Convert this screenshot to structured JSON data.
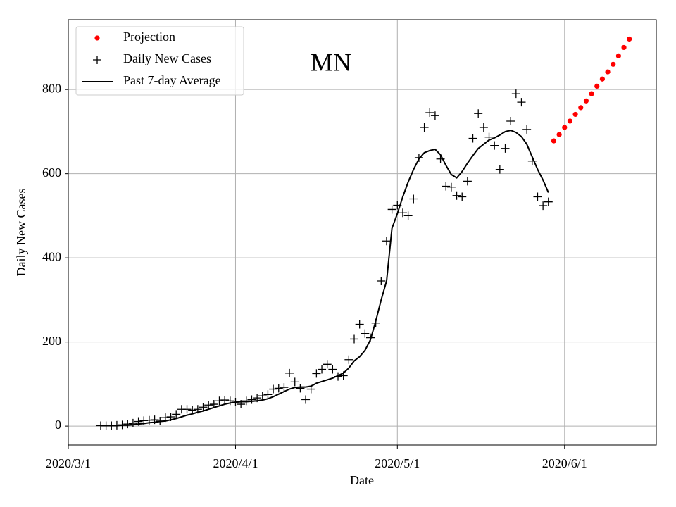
{
  "chart_data": {
    "type": "line",
    "title": "MN",
    "xlabel": "Date",
    "ylabel": "Daily New Cases",
    "xlim": [
      "2020/3/1",
      "2020/6/18"
    ],
    "ylim": [
      -45,
      966
    ],
    "xticks": [
      "2020/3/1",
      "2020/4/1",
      "2020/5/1",
      "2020/6/1"
    ],
    "yticks": [
      0,
      200,
      400,
      600,
      800
    ],
    "grid": true,
    "legend": "upper left",
    "series": [
      {
        "name": "Projection",
        "kind": "dots",
        "color": "#ff0000",
        "x": [
          "2020/5/30",
          "2020/5/31",
          "2020/6/1",
          "2020/6/2",
          "2020/6/3",
          "2020/6/4",
          "2020/6/5",
          "2020/6/6",
          "2020/6/7",
          "2020/6/8",
          "2020/6/9",
          "2020/6/10",
          "2020/6/11",
          "2020/6/12",
          "2020/6/13"
        ],
        "values": [
          678,
          693,
          710,
          725,
          741,
          757,
          773,
          790,
          808,
          825,
          842,
          860,
          880,
          900,
          920
        ]
      },
      {
        "name": "Daily New Cases",
        "kind": "plus",
        "color": "#000000",
        "x": [
          "2020/3/7",
          "2020/3/8",
          "2020/3/9",
          "2020/3/10",
          "2020/3/11",
          "2020/3/12",
          "2020/3/13",
          "2020/3/14",
          "2020/3/15",
          "2020/3/16",
          "2020/3/17",
          "2020/3/18",
          "2020/3/19",
          "2020/3/20",
          "2020/3/21",
          "2020/3/22",
          "2020/3/23",
          "2020/3/24",
          "2020/3/25",
          "2020/3/26",
          "2020/3/27",
          "2020/3/28",
          "2020/3/29",
          "2020/3/30",
          "2020/3/31",
          "2020/4/1",
          "2020/4/2",
          "2020/4/3",
          "2020/4/4",
          "2020/4/5",
          "2020/4/6",
          "2020/4/7",
          "2020/4/8",
          "2020/4/9",
          "2020/4/10",
          "2020/4/11",
          "2020/4/12",
          "2020/4/13",
          "2020/4/14",
          "2020/4/15",
          "2020/4/16",
          "2020/4/17",
          "2020/4/18",
          "2020/4/19",
          "2020/4/20",
          "2020/4/21",
          "2020/4/22",
          "2020/4/23",
          "2020/4/24",
          "2020/4/25",
          "2020/4/26",
          "2020/4/27",
          "2020/4/28",
          "2020/4/29",
          "2020/4/30",
          "2020/5/1",
          "2020/5/2",
          "2020/5/3",
          "2020/5/4",
          "2020/5/5",
          "2020/5/6",
          "2020/5/7",
          "2020/5/8",
          "2020/5/9",
          "2020/5/10",
          "2020/5/11",
          "2020/5/12",
          "2020/5/13",
          "2020/5/14",
          "2020/5/15",
          "2020/5/16",
          "2020/5/17",
          "2020/5/18",
          "2020/5/19",
          "2020/5/20",
          "2020/5/21",
          "2020/5/22",
          "2020/5/23",
          "2020/5/24",
          "2020/5/25",
          "2020/5/26",
          "2020/5/27",
          "2020/5/28",
          "2020/5/29"
        ],
        "values": [
          1,
          1,
          1,
          2,
          3,
          5,
          7,
          11,
          13,
          14,
          15,
          12,
          20,
          22,
          28,
          40,
          40,
          38,
          40,
          45,
          50,
          52,
          60,
          62,
          60,
          57,
          52,
          60,
          63,
          67,
          72,
          75,
          88,
          90,
          92,
          126,
          105,
          90,
          63,
          88,
          125,
          135,
          147,
          135,
          118,
          120,
          158,
          207,
          242,
          220,
          210,
          245,
          345,
          440,
          515,
          525,
          507,
          500,
          540,
          638,
          710,
          745,
          738,
          635,
          570,
          568,
          548,
          545,
          582,
          684,
          743,
          710,
          687,
          667,
          610,
          660,
          725,
          790,
          770,
          705,
          630,
          545,
          524,
          533
        ]
      },
      {
        "name": "Past 7-day Average",
        "kind": "line",
        "color": "#000000",
        "x": [
          "2020/3/7",
          "2020/3/8",
          "2020/3/9",
          "2020/3/10",
          "2020/3/11",
          "2020/3/12",
          "2020/3/13",
          "2020/3/14",
          "2020/3/15",
          "2020/3/16",
          "2020/3/17",
          "2020/3/18",
          "2020/3/19",
          "2020/3/20",
          "2020/3/21",
          "2020/3/22",
          "2020/3/23",
          "2020/3/24",
          "2020/3/25",
          "2020/3/26",
          "2020/3/27",
          "2020/3/28",
          "2020/3/29",
          "2020/3/30",
          "2020/3/31",
          "2020/4/1",
          "2020/4/2",
          "2020/4/3",
          "2020/4/4",
          "2020/4/5",
          "2020/4/6",
          "2020/4/7",
          "2020/4/8",
          "2020/4/9",
          "2020/4/10",
          "2020/4/11",
          "2020/4/12",
          "2020/4/13",
          "2020/4/14",
          "2020/4/15",
          "2020/4/16",
          "2020/4/17",
          "2020/4/18",
          "2020/4/19",
          "2020/4/20",
          "2020/4/21",
          "2020/4/22",
          "2020/4/23",
          "2020/4/24",
          "2020/4/25",
          "2020/4/26",
          "2020/4/27",
          "2020/4/28",
          "2020/4/29",
          "2020/4/30",
          "2020/5/1",
          "2020/5/2",
          "2020/5/3",
          "2020/5/4",
          "2020/5/5",
          "2020/5/6",
          "2020/5/7",
          "2020/5/8",
          "2020/5/9",
          "2020/5/10",
          "2020/5/11",
          "2020/5/12",
          "2020/5/13",
          "2020/5/14",
          "2020/5/15",
          "2020/5/16",
          "2020/5/17",
          "2020/5/18",
          "2020/5/19",
          "2020/5/20",
          "2020/5/21",
          "2020/5/22",
          "2020/5/23",
          "2020/5/24",
          "2020/5/25",
          "2020/5/26",
          "2020/5/27",
          "2020/5/28",
          "2020/5/29"
        ],
        "values": [
          1,
          1,
          1,
          1,
          2,
          2,
          3,
          5,
          6,
          8,
          9,
          11,
          12,
          15,
          18,
          22,
          26,
          29,
          33,
          36,
          40,
          44,
          48,
          52,
          55,
          57,
          58,
          58,
          59,
          60,
          62,
          65,
          70,
          76,
          82,
          88,
          92,
          93,
          93,
          95,
          102,
          106,
          110,
          114,
          120,
          126,
          138,
          155,
          165,
          180,
          205,
          250,
          300,
          345,
          470,
          505,
          545,
          580,
          610,
          635,
          650,
          655,
          658,
          645,
          620,
          598,
          590,
          605,
          625,
          643,
          660,
          670,
          680,
          685,
          692,
          700,
          703,
          698,
          688,
          670,
          640,
          610,
          585,
          555
        ]
      }
    ]
  }
}
